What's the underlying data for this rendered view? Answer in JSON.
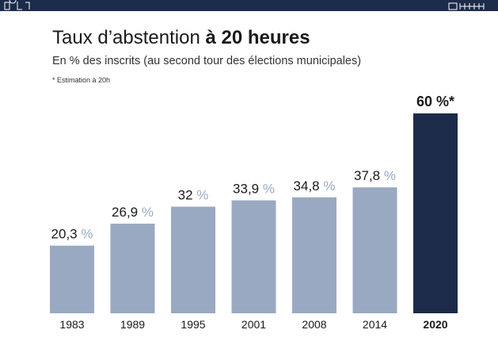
{
  "title": {
    "regular": "Taux d’abstention ",
    "bold": "à 20 heures"
  },
  "subtitle": "En % des inscrits (au second tour des élections municipales)",
  "note": "* Estimation à 20h",
  "colors": {
    "bar": "#9aa9c2",
    "bar_highlight": "#1c2b4a",
    "unit": "#9aa9c2",
    "header": "#1c2b4a"
  },
  "chart_data": {
    "type": "bar",
    "categories": [
      "1983",
      "1989",
      "1995",
      "2001",
      "2008",
      "2014",
      "2020"
    ],
    "values": [
      20.3,
      26.9,
      32,
      33.9,
      34.8,
      37.8,
      60
    ],
    "value_labels": [
      {
        "num": "20,3",
        "unit": " %"
      },
      {
        "num": "26,9",
        "unit": " %"
      },
      {
        "num": "32",
        "unit": " %"
      },
      {
        "num": "33,9",
        "unit": " %"
      },
      {
        "num": "34,8",
        "unit": " %"
      },
      {
        "num": "37,8",
        "unit": " %"
      },
      {
        "num": "60 %*",
        "unit": ""
      }
    ],
    "highlight_index": 6,
    "ylim": [
      0,
      60
    ],
    "grid": false,
    "title": "Taux d’abstention à 20 heures",
    "xlabel": "",
    "ylabel": ""
  }
}
